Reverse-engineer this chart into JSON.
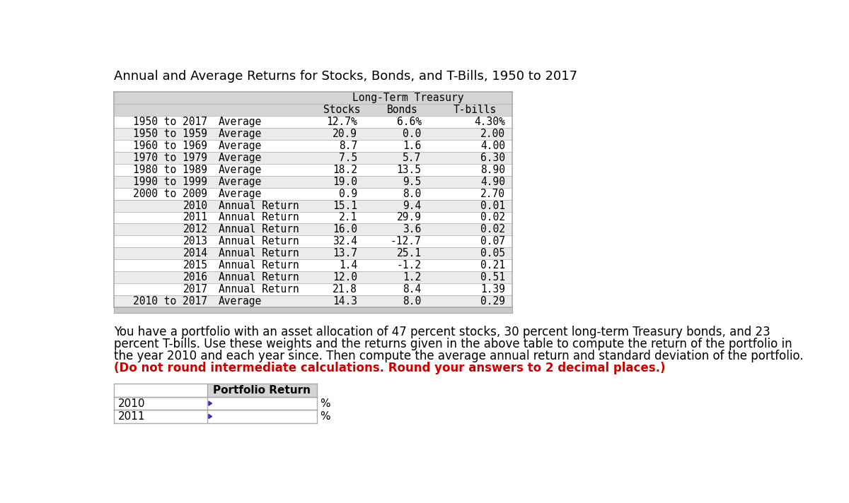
{
  "title": "Annual and Average Returns for Stocks, Bonds, and T-Bills, 1950 to 2017",
  "table_rows": [
    {
      "label1": "1950 to 2017",
      "label2": "",
      "label3": "Average",
      "stocks": "12.7%",
      "bonds": "6.6%",
      "tbills": "4.30%",
      "alt": false
    },
    {
      "label1": "1950 to 1959",
      "label2": "",
      "label3": "Average",
      "stocks": "20.9",
      "bonds": "0.0",
      "tbills": "2.00",
      "alt": true
    },
    {
      "label1": "1960 to 1969",
      "label2": "",
      "label3": "Average",
      "stocks": "8.7",
      "bonds": "1.6",
      "tbills": "4.00",
      "alt": false
    },
    {
      "label1": "1970 to 1979",
      "label2": "",
      "label3": "Average",
      "stocks": "7.5",
      "bonds": "5.7",
      "tbills": "6.30",
      "alt": true
    },
    {
      "label1": "1980 to 1989",
      "label2": "",
      "label3": "Average",
      "stocks": "18.2",
      "bonds": "13.5",
      "tbills": "8.90",
      "alt": false
    },
    {
      "label1": "1990 to 1999",
      "label2": "",
      "label3": "Average",
      "stocks": "19.0",
      "bonds": "9.5",
      "tbills": "4.90",
      "alt": true
    },
    {
      "label1": "2000 to 2009",
      "label2": "",
      "label3": "Average",
      "stocks": "0.9",
      "bonds": "8.0",
      "tbills": "2.70",
      "alt": false
    },
    {
      "label1": "",
      "label2": "2010",
      "label3": "Annual Return",
      "stocks": "15.1",
      "bonds": "9.4",
      "tbills": "0.01",
      "alt": true
    },
    {
      "label1": "",
      "label2": "2011",
      "label3": "Annual Return",
      "stocks": "2.1",
      "bonds": "29.9",
      "tbills": "0.02",
      "alt": false
    },
    {
      "label1": "",
      "label2": "2012",
      "label3": "Annual Return",
      "stocks": "16.0",
      "bonds": "3.6",
      "tbills": "0.02",
      "alt": true
    },
    {
      "label1": "",
      "label2": "2013",
      "label3": "Annual Return",
      "stocks": "32.4",
      "bonds": "-12.7",
      "tbills": "0.07",
      "alt": false
    },
    {
      "label1": "",
      "label2": "2014",
      "label3": "Annual Return",
      "stocks": "13.7",
      "bonds": "25.1",
      "tbills": "0.05",
      "alt": true
    },
    {
      "label1": "",
      "label2": "2015",
      "label3": "Annual Return",
      "stocks": "1.4",
      "bonds": "-1.2",
      "tbills": "0.21",
      "alt": false
    },
    {
      "label1": "",
      "label2": "2016",
      "label3": "Annual Return",
      "stocks": "12.0",
      "bonds": "1.2",
      "tbills": "0.51",
      "alt": true
    },
    {
      "label1": "",
      "label2": "2017",
      "label3": "Annual Return",
      "stocks": "21.8",
      "bonds": "8.4",
      "tbills": "1.39",
      "alt": false
    },
    {
      "label1": "2010 to 2017",
      "label2": "",
      "label3": "Average",
      "stocks": "14.3",
      "bonds": "8.0",
      "tbills": "0.29",
      "alt": true
    }
  ],
  "para_line1": "You have a portfolio with an asset allocation of 47 percent stocks, 30 percent long-term Treasury bonds, and 23",
  "para_line2": "percent T-bills. Use these weights and the returns given in the above table to compute the return of the portfolio in",
  "para_line3": "the year 2010 and each year since. Then compute the average annual return and standard deviation of the portfolio.",
  "paragraph_bold": "(Do not round intermediate calculations. Round your answers to 2 decimal places.)",
  "header_bg": "#d4d4d4",
  "alt_row_bg": "#ebebeb",
  "white_bg": "#ffffff",
  "table_border": "#aaaaaa",
  "scrollbar_bg": "#c8c8c8",
  "title_fontsize": 13,
  "table_fontsize": 10.5,
  "paragraph_fontsize": 12,
  "bold_color": "#cc0000",
  "blue_tri": "#3333bb"
}
